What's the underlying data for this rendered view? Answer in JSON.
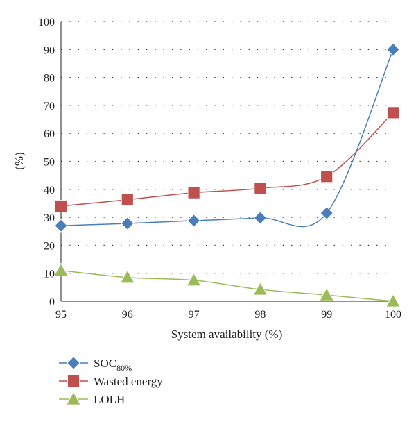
{
  "chart_data": {
    "type": "line",
    "x": [
      95,
      96,
      97,
      98,
      99,
      100
    ],
    "xlabel": "System availability (%)",
    "ylabel": "(%)",
    "xlim": [
      95,
      100
    ],
    "ylim": [
      0,
      100
    ],
    "x_ticks": [
      "95",
      "96",
      "97",
      "98",
      "99",
      "100"
    ],
    "y_ticks": [
      "0",
      "10",
      "20",
      "30",
      "40",
      "50",
      "60",
      "70",
      "80",
      "90",
      "100"
    ],
    "grid": "horizontal dotted",
    "legend_position": "bottom-left",
    "series": [
      {
        "name": "SOC",
        "name_subscript": "80%",
        "marker": "diamond",
        "color": "#4a7ebb",
        "values": [
          27,
          27.8,
          28.8,
          29.8,
          31.5,
          90
        ]
      },
      {
        "name": "Wasted energy",
        "marker": "square",
        "color": "#c0504d",
        "values": [
          34,
          36.3,
          38.8,
          40.4,
          44.6,
          67.4
        ]
      },
      {
        "name": "LOLH",
        "marker": "triangle",
        "color": "#9bbb59",
        "values": [
          11,
          8.5,
          7.5,
          4.2,
          2.2,
          0
        ]
      }
    ]
  }
}
